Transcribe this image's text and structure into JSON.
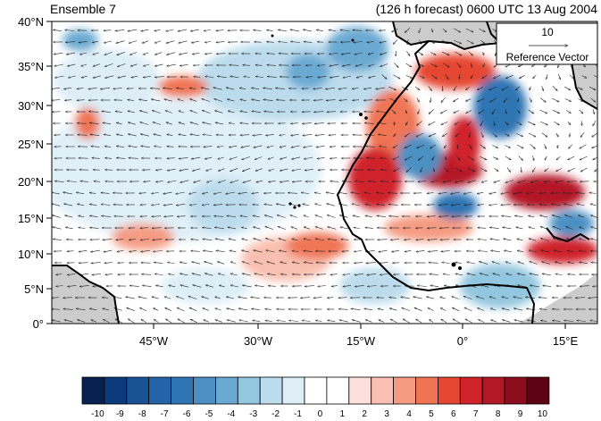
{
  "header": {
    "left_title": "Ensemble 7",
    "right_title": "(126 h forecast) 0600 UTC 13 Aug 2004"
  },
  "map": {
    "lat_labels": [
      "40°N",
      "35°N",
      "30°N",
      "25°N",
      "20°N",
      "15°N",
      "10°N",
      "5°N",
      "0°"
    ],
    "lon_labels": [
      "45°W",
      "30°W",
      "15°W",
      "0°",
      "15°E"
    ],
    "land_color": "#cccccc",
    "coast_color": "#000000"
  },
  "reference_vector": {
    "magnitude": "10",
    "label": "Reference Vector"
  },
  "colorbar": {
    "ticks": [
      "-10",
      "-9",
      "-8",
      "-7",
      "-6",
      "-5",
      "-4",
      "-3",
      "-2",
      "-1",
      "0",
      "1",
      "2",
      "3",
      "4",
      "5",
      "6",
      "7",
      "8",
      "9",
      "10"
    ],
    "colors": [
      "#08214f",
      "#0b3a7a",
      "#1a5296",
      "#2563a8",
      "#2f75b4",
      "#4c90c3",
      "#6aa9d2",
      "#93c6df",
      "#bcdced",
      "#ddeef7",
      "#ffffff",
      "#ffffff",
      "#fde0dc",
      "#f9bfb0",
      "#f59b83",
      "#ef7454",
      "#e54733",
      "#cf2329",
      "#b31925",
      "#8d0d1e",
      "#5e0313"
    ]
  }
}
